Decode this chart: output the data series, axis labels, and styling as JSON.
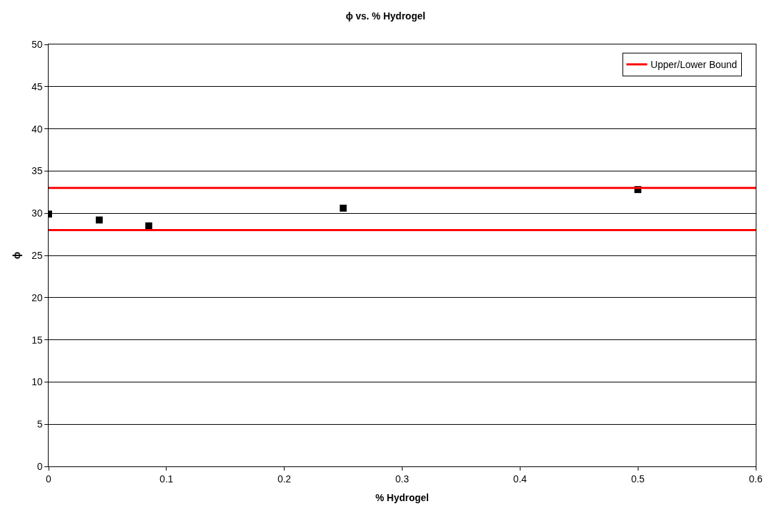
{
  "chart_data": {
    "type": "scatter",
    "title": "ϕ vs. % Hydrogel",
    "xlabel": "% Hydrogel",
    "ylabel": "ϕ",
    "series": [
      {
        "color": "#000000",
        "marker": "square",
        "x": [
          0,
          0.043,
          0.085,
          0.25,
          0.5
        ],
        "values": [
          29.9,
          29.2,
          28.5,
          30.6,
          32.8
        ]
      },
      {
        "type": "line",
        "name": "Upper/Lower Bound",
        "color": "#ff0000",
        "marker": "none",
        "line_style": "solid",
        "x": [
          0,
          0.6
        ],
        "values": [
          33,
          33
        ]
      },
      {
        "type": "line",
        "color": "#ff0000",
        "marker": "none",
        "line_style": "solid",
        "x": [
          0,
          0.6
        ],
        "values": [
          28,
          28
        ]
      }
    ],
    "xlim": [
      0,
      0.6
    ],
    "xticks": [
      0,
      0.1,
      0.2,
      0.3,
      0.4,
      0.5,
      0.6
    ],
    "ylim": [
      0,
      50
    ],
    "yticks": [
      0,
      5,
      10,
      15,
      20,
      25,
      30,
      35,
      40,
      45,
      50
    ],
    "grid": "y",
    "legend": "top right"
  }
}
